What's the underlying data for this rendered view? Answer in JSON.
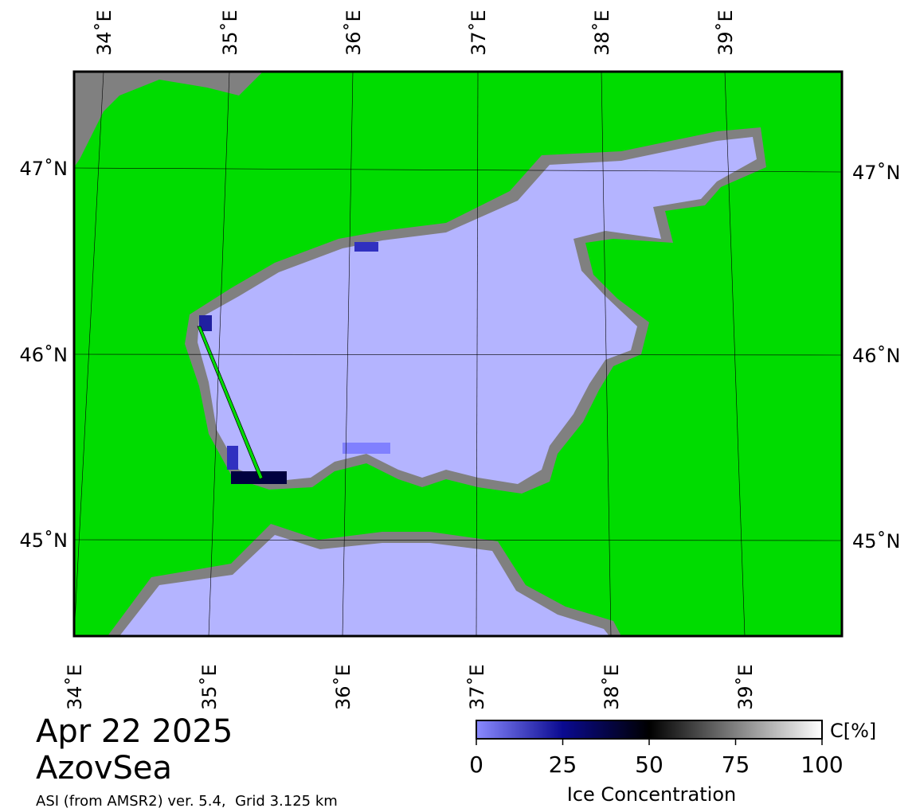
{
  "header": {
    "date": "Apr 22 2025",
    "region": "AzovSea",
    "source": "ASI (from AMSR2) ver. 5.4,  Grid 3.125 km"
  },
  "map": {
    "lon_labels": [
      "34˚E",
      "35˚E",
      "36˚E",
      "37˚E",
      "38˚E",
      "39˚E"
    ],
    "lat_labels": [
      "47˚N",
      "46˚N",
      "45˚N"
    ]
  },
  "colorbar": {
    "unit": "C[%]",
    "label": "Ice Concentration",
    "lim": [
      0,
      100
    ],
    "ticks": [
      0,
      25,
      50,
      75,
      100
    ]
  }
}
